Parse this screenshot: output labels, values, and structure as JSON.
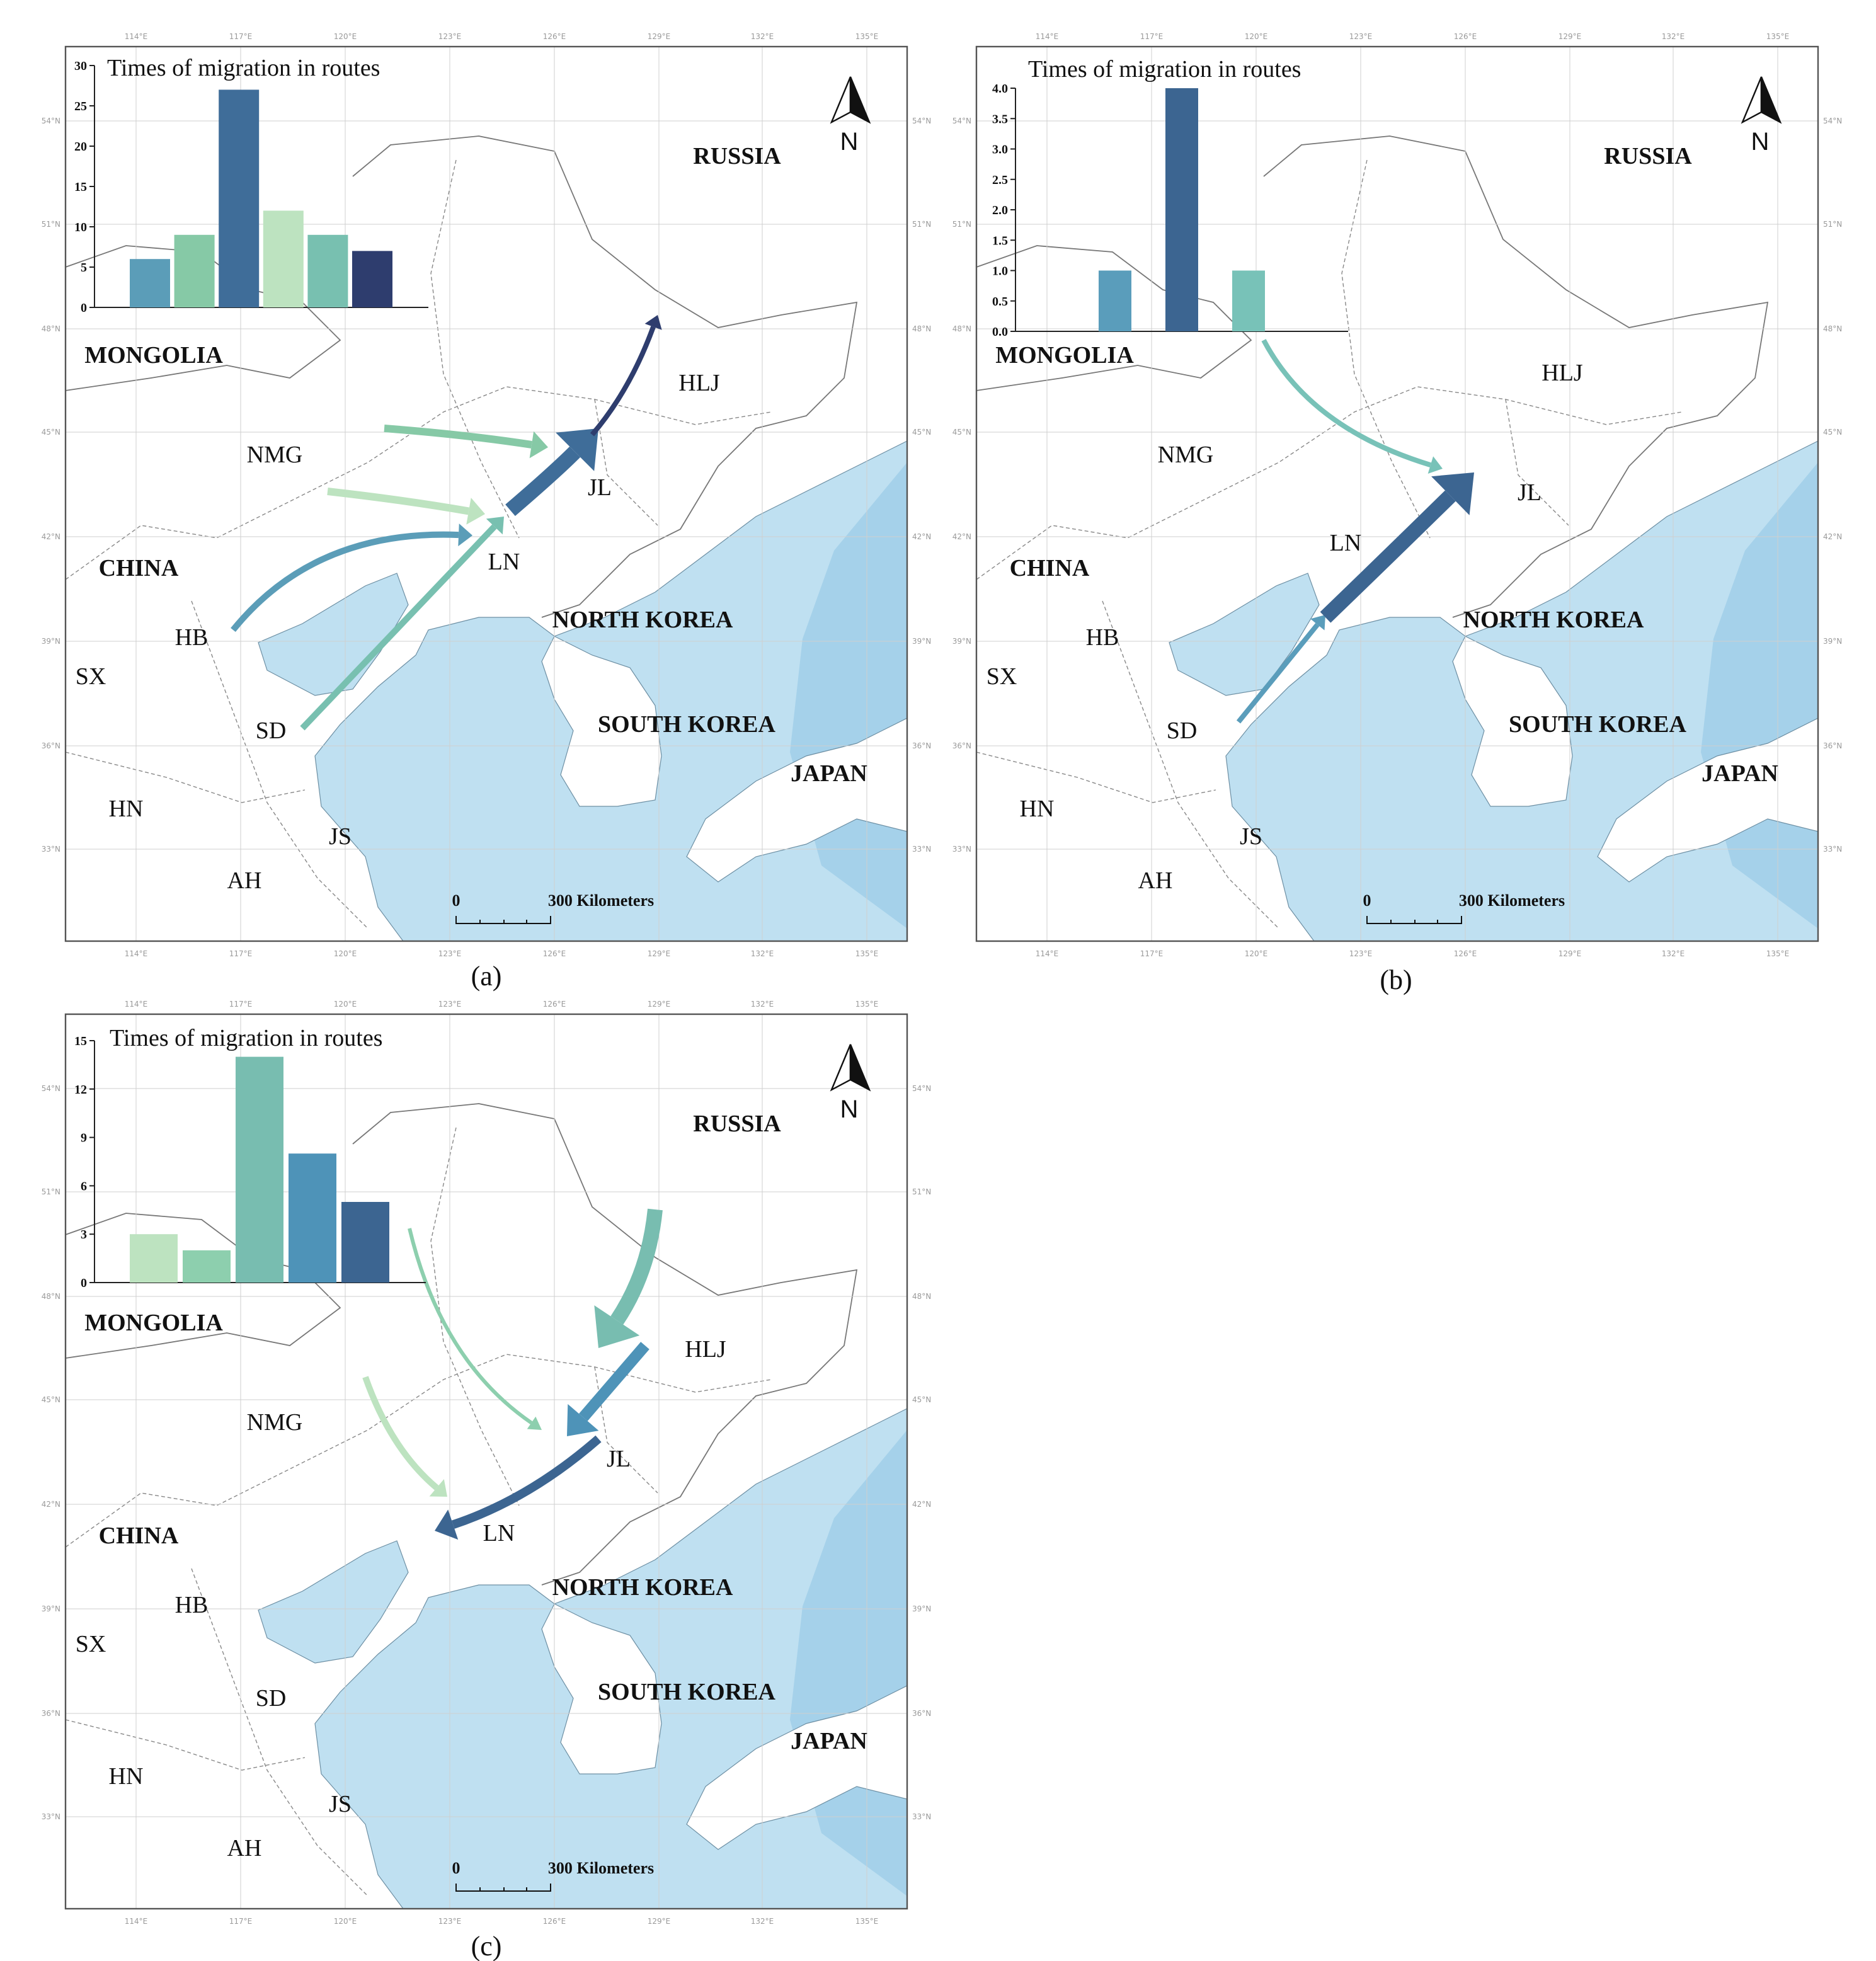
{
  "lon_ticks": [
    "114°E",
    "117°E",
    "120°E",
    "123°E",
    "126°E",
    "129°E",
    "132°E",
    "135°E"
  ],
  "lat_ticks": [
    "54°N",
    "51°N",
    "48°N",
    "45°N",
    "42°N",
    "39°N",
    "36°N",
    "33°N"
  ],
  "map_labels": [
    "RUSSIA",
    "MONGOLIA",
    "HLJ",
    "NMG",
    "JL",
    "CHINA",
    "LN",
    "NORTH KOREA",
    "HB",
    "SX",
    "SD",
    "SOUTH KOREA",
    "JAPAN",
    "HN",
    "JS",
    "AH"
  ],
  "scale": {
    "zero": "0",
    "label": "300 Kilometers"
  },
  "north": "N",
  "panels": [
    {
      "caption": "(a)",
      "chart_data": {
        "type": "bar",
        "title": "Times of migration in routes",
        "values": [
          6,
          9,
          27,
          12,
          9,
          7
        ],
        "colors": [
          "#5b9db8",
          "#86c9a6",
          "#3f6d99",
          "#bde3c0",
          "#78c0b0",
          "#2e3d6e"
        ],
        "ylim": [
          0,
          30
        ],
        "yticks": [
          0,
          5,
          10,
          15,
          20,
          25,
          30
        ]
      }
    },
    {
      "caption": "(b)",
      "chart_data": {
        "type": "bar",
        "title": "Times of migration in routes",
        "values": [
          1,
          4,
          1
        ],
        "colors": [
          "#5a9dbb",
          "#3c6591",
          "#78c2b8"
        ],
        "ylim": [
          0,
          4
        ],
        "yticks": [
          {
            "value": 0,
            "label": "0.0"
          },
          0.5,
          {
            "value": 1,
            "label": "1.0"
          },
          1.5,
          {
            "value": 2,
            "label": "2.0"
          },
          2.5,
          {
            "value": 3,
            "label": "3.0"
          },
          3.5,
          {
            "value": 4,
            "label": "4.0"
          }
        ]
      }
    },
    {
      "caption": "(c)",
      "chart_data": {
        "type": "bar",
        "title": "Times of migration in routes",
        "values": [
          3,
          2,
          14,
          8,
          5
        ],
        "colors": [
          "#bde3c0",
          "#8dcfae",
          "#78bdb0",
          "#4e93b8",
          "#3c6591"
        ],
        "ylim": [
          0,
          15
        ],
        "yticks": [
          0,
          3,
          6,
          9,
          12,
          15
        ]
      }
    }
  ]
}
